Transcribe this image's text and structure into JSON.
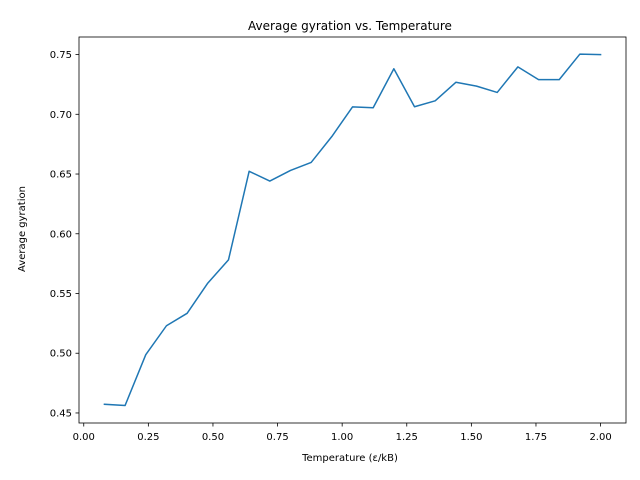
{
  "chart_data": {
    "type": "line",
    "title": "Average gyration vs. Temperature",
    "xlabel": "Temperature (ε/kB)",
    "ylabel": "Average gyration",
    "xlim": [
      -0.0184,
      2.0984
    ],
    "ylim": [
      0.4416,
      0.7647
    ],
    "xticks": [
      {
        "value": 0.0,
        "label": "0.00"
      },
      {
        "value": 0.25,
        "label": "0.25"
      },
      {
        "value": 0.5,
        "label": "0.50"
      },
      {
        "value": 0.75,
        "label": "0.75"
      },
      {
        "value": 1.0,
        "label": "1.00"
      },
      {
        "value": 1.25,
        "label": "1.25"
      },
      {
        "value": 1.5,
        "label": "1.50"
      },
      {
        "value": 1.75,
        "label": "1.75"
      },
      {
        "value": 2.0,
        "label": "2.00"
      }
    ],
    "yticks": [
      {
        "value": 0.45,
        "label": "0.45"
      },
      {
        "value": 0.5,
        "label": "0.50"
      },
      {
        "value": 0.55,
        "label": "0.55"
      },
      {
        "value": 0.6,
        "label": "0.60"
      },
      {
        "value": 0.65,
        "label": "0.65"
      },
      {
        "value": 0.7,
        "label": "0.70"
      },
      {
        "value": 0.75,
        "label": "0.75"
      }
    ],
    "grid": false,
    "series": [
      {
        "color": "#1f77b4",
        "x": [
          0.08,
          0.16,
          0.24,
          0.32,
          0.4,
          0.48,
          0.56,
          0.64,
          0.72,
          0.8,
          0.88,
          0.96,
          1.04,
          1.12,
          1.2,
          1.28,
          1.36,
          1.44,
          1.52,
          1.6,
          1.68,
          1.76,
          1.84,
          1.92,
          2.0
        ],
        "values": [
          0.4573,
          0.4563,
          0.4988,
          0.523,
          0.5334,
          0.5587,
          0.5781,
          0.6523,
          0.6441,
          0.653,
          0.6597,
          0.6814,
          0.7062,
          0.7055,
          0.7381,
          0.7063,
          0.7113,
          0.7268,
          0.7236,
          0.7183,
          0.7397,
          0.729,
          0.729,
          0.7504,
          0.75
        ]
      }
    ]
  }
}
